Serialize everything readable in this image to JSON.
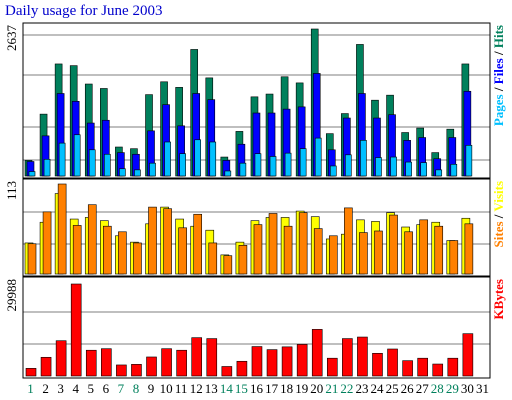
{
  "title": "Daily usage for June 2003",
  "colors": {
    "hits": "#00805c",
    "files": "#0000ff",
    "pages": "#00c0ff",
    "visits": "#ffff00",
    "sites": "#ff8000",
    "kbytes": "#ff0000",
    "weekend_label": "#00805c",
    "weekday_label": "#000000",
    "title": "#0000cc"
  },
  "chart_data": [
    {
      "type": "bar",
      "panel": "hits-files-pages",
      "max_label": "2637",
      "ylim": [
        0,
        2637
      ],
      "legend": [
        "Pages",
        "/",
        "Files",
        "/",
        "Hits"
      ],
      "grid": true,
      "categories": [
        "1",
        "2",
        "3",
        "4",
        "5",
        "6",
        "7",
        "8",
        "9",
        "10",
        "11",
        "12",
        "13",
        "14",
        "15",
        "16",
        "17",
        "18",
        "19",
        "20",
        "21",
        "22",
        "23",
        "24",
        "25",
        "26",
        "27",
        "28",
        "29",
        "30",
        "31"
      ],
      "series": [
        {
          "name": "Hits",
          "values": [
            280,
            1110,
            2010,
            1980,
            1650,
            1570,
            520,
            490,
            1460,
            1690,
            1590,
            2270,
            1760,
            340,
            800,
            1420,
            1470,
            1780,
            1670,
            2637,
            760,
            1120,
            2360,
            1360,
            1450,
            780,
            860,
            420,
            840,
            2010,
            0
          ]
        },
        {
          "name": "Files",
          "values": [
            260,
            720,
            1480,
            1340,
            950,
            1000,
            420,
            390,
            810,
            1280,
            900,
            1480,
            1370,
            280,
            570,
            1130,
            1130,
            1200,
            1240,
            1840,
            470,
            1040,
            1480,
            1040,
            1100,
            640,
            690,
            310,
            690,
            1520,
            0
          ]
        },
        {
          "name": "Pages",
          "values": [
            80,
            300,
            590,
            740,
            470,
            390,
            130,
            110,
            230,
            610,
            400,
            650,
            610,
            90,
            230,
            400,
            350,
            410,
            490,
            680,
            180,
            380,
            640,
            330,
            340,
            250,
            240,
            110,
            210,
            550,
            0
          ]
        }
      ]
    },
    {
      "type": "bar",
      "panel": "visits-sites",
      "max_label": "113",
      "ylim": [
        0,
        113
      ],
      "legend": [
        "Sites",
        "/",
        "Visits"
      ],
      "grid": true,
      "categories": [
        "1",
        "2",
        "3",
        "4",
        "5",
        "6",
        "7",
        "8",
        "9",
        "10",
        "11",
        "12",
        "13",
        "14",
        "15",
        "16",
        "17",
        "18",
        "19",
        "20",
        "21",
        "22",
        "23",
        "24",
        "25",
        "26",
        "27",
        "28",
        "29",
        "30",
        "31"
      ],
      "series": [
        {
          "name": "Visits",
          "values": [
            39,
            65,
            101,
            69,
            71,
            67,
            48,
            40,
            63,
            84,
            69,
            60,
            55,
            24,
            40,
            67,
            71,
            71,
            79,
            72,
            44,
            50,
            68,
            66,
            77,
            59,
            62,
            65,
            42,
            70,
            0
          ]
        },
        {
          "name": "Sites",
          "values": [
            38,
            78,
            113,
            61,
            87,
            60,
            53,
            39,
            84,
            82,
            58,
            75,
            39,
            23,
            36,
            62,
            76,
            60,
            77,
            57,
            48,
            83,
            52,
            54,
            74,
            53,
            68,
            60,
            42,
            63,
            0
          ]
        }
      ]
    },
    {
      "type": "bar",
      "panel": "kbytes",
      "max_label": "29988",
      "ylim": [
        0,
        29988
      ],
      "legend": [
        "KBytes"
      ],
      "grid": true,
      "categories": [
        "1",
        "2",
        "3",
        "4",
        "5",
        "6",
        "7",
        "8",
        "9",
        "10",
        "11",
        "12",
        "13",
        "14",
        "15",
        "16",
        "17",
        "18",
        "19",
        "20",
        "21",
        "22",
        "23",
        "24",
        "25",
        "26",
        "27",
        "28",
        "29",
        "30",
        "31"
      ],
      "series": [
        {
          "name": "KBytes",
          "values": [
            2500,
            6100,
            11500,
            29988,
            8400,
            8900,
            3600,
            3800,
            6200,
            8900,
            8400,
            12500,
            12200,
            3100,
            4800,
            9600,
            8600,
            9500,
            10300,
            15200,
            5800,
            12200,
            12700,
            7400,
            8800,
            5000,
            5800,
            3900,
            5800,
            13800,
            0
          ]
        }
      ]
    }
  ]
}
